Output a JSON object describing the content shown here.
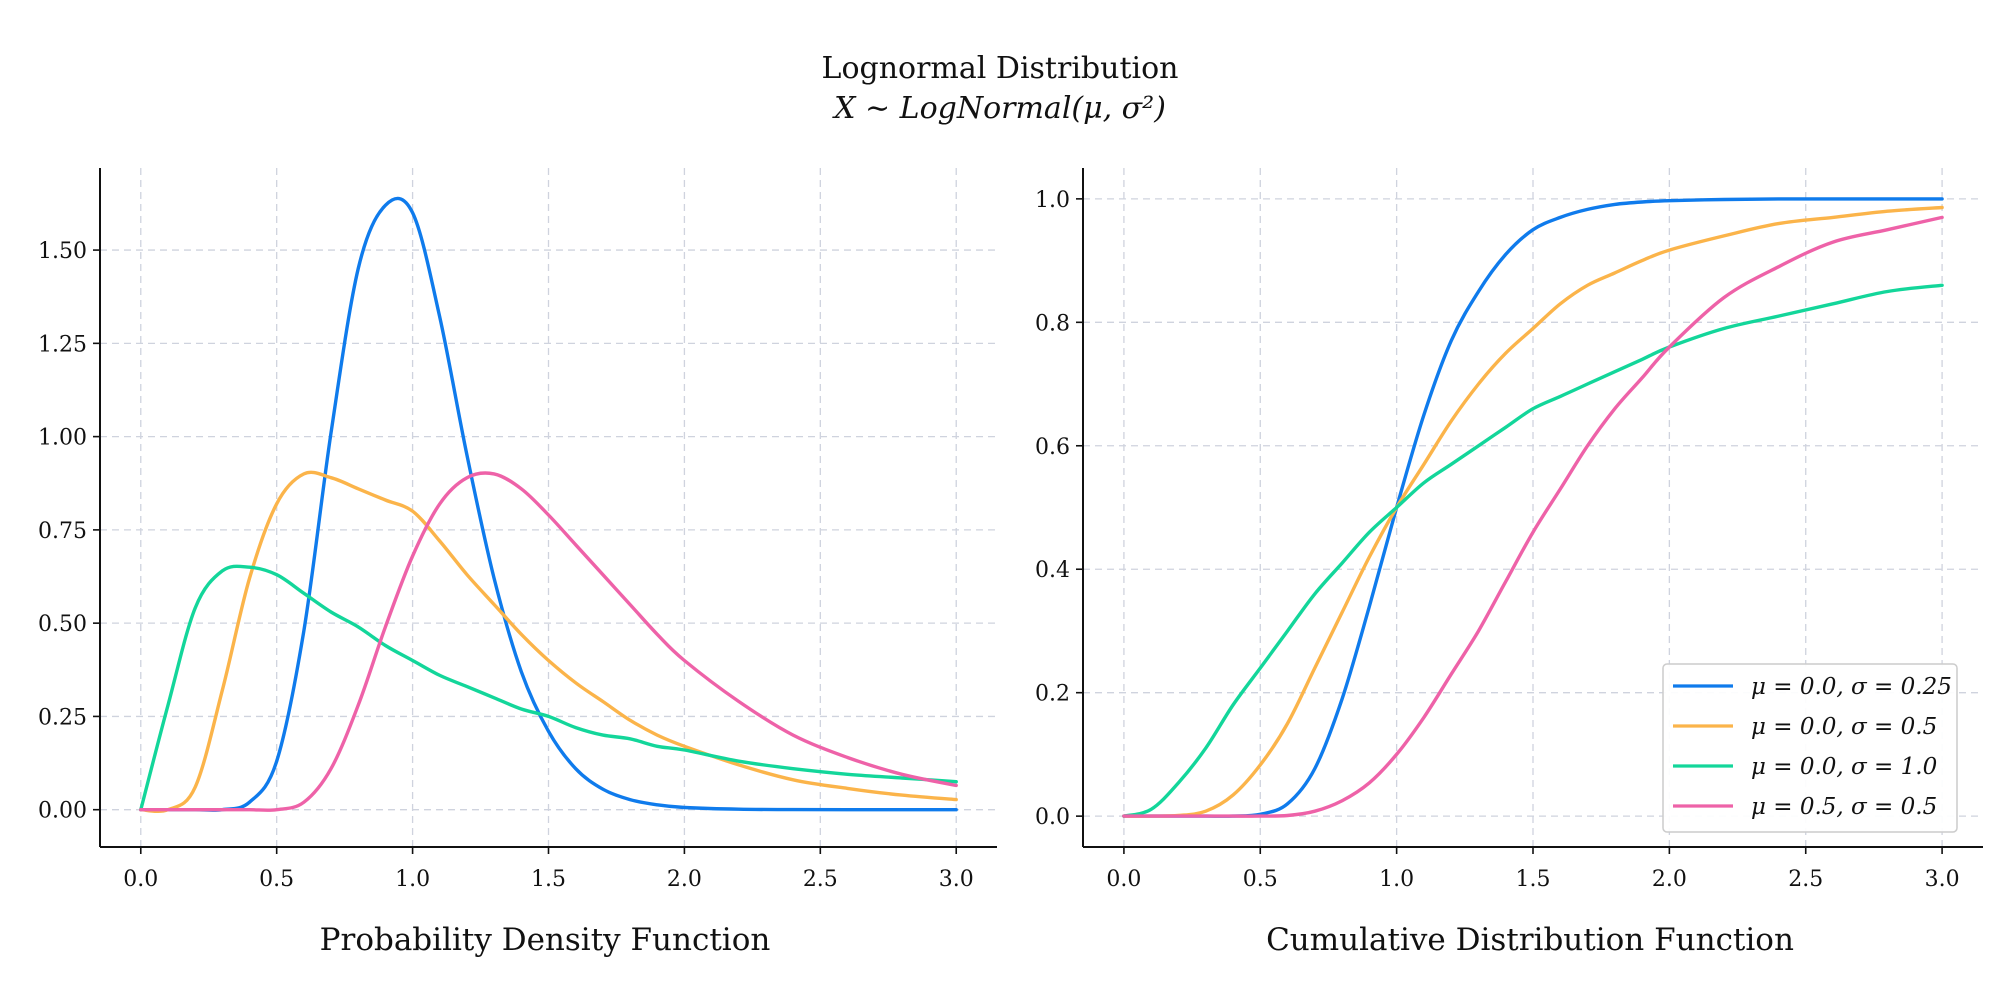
{
  "figure": {
    "title": "Lognormal Distribution",
    "subtitle": "X ∼ LogNormal(μ, σ²)"
  },
  "colors": {
    "grid": "#cfd3de",
    "axis": "#111111",
    "series": [
      "#0f7bec",
      "#fbb44a",
      "#13d69a",
      "#ee62a8"
    ]
  },
  "legend": {
    "placement": "lower-right",
    "entries": [
      "μ = 0.0, σ = 0.25",
      "μ = 0.0, σ = 0.5",
      "μ = 0.0, σ = 1.0",
      "μ = 0.5, σ = 0.5"
    ]
  },
  "chart_data": [
    {
      "type": "line",
      "xlabel": "Probability Density Function",
      "ylabel": "",
      "xlim": [
        -0.15,
        3.15
      ],
      "ylim": [
        -0.1,
        1.72
      ],
      "xticks": [
        0.0,
        0.5,
        1.0,
        1.5,
        2.0,
        2.5,
        3.0
      ],
      "xtick_labels": [
        "0.0",
        "0.5",
        "1.0",
        "1.5",
        "2.0",
        "2.5",
        "3.0"
      ],
      "yticks": [
        0.0,
        0.25,
        0.5,
        0.75,
        1.0,
        1.25,
        1.5
      ],
      "ytick_labels": [
        "0.00",
        "0.25",
        "0.50",
        "0.75",
        "1.00",
        "1.25",
        "1.50"
      ],
      "grid": true,
      "x": [
        0.0,
        0.1,
        0.2,
        0.3,
        0.4,
        0.5,
        0.6,
        0.7,
        0.8,
        0.9,
        1.0,
        1.1,
        1.2,
        1.3,
        1.4,
        1.5,
        1.6,
        1.7,
        1.8,
        1.9,
        2.0,
        2.2,
        2.4,
        2.6,
        2.8,
        3.0
      ],
      "series": [
        {
          "name": "μ = 0.0, σ = 0.25",
          "values": [
            0.0,
            0.0,
            0.0,
            0.0,
            0.02,
            0.13,
            0.48,
            1.01,
            1.45,
            1.62,
            1.6,
            1.32,
            0.95,
            0.62,
            0.37,
            0.21,
            0.11,
            0.055,
            0.027,
            0.013,
            0.006,
            0.0013,
            0.0003,
            0.0001,
            0.0,
            0.0
          ]
        },
        {
          "name": "μ = 0.0, σ = 0.5",
          "values": [
            0.0,
            0.0,
            0.06,
            0.32,
            0.62,
            0.82,
            0.9,
            0.89,
            0.86,
            0.83,
            0.8,
            0.72,
            0.63,
            0.55,
            0.47,
            0.4,
            0.34,
            0.29,
            0.24,
            0.2,
            0.17,
            0.12,
            0.08,
            0.057,
            0.039,
            0.027
          ]
        },
        {
          "name": "μ = 0.0, σ = 1.0",
          "values": [
            0.0,
            0.28,
            0.54,
            0.64,
            0.65,
            0.63,
            0.58,
            0.53,
            0.49,
            0.44,
            0.4,
            0.36,
            0.33,
            0.3,
            0.27,
            0.25,
            0.22,
            0.2,
            0.19,
            0.17,
            0.16,
            0.13,
            0.11,
            0.095,
            0.085,
            0.075
          ]
        },
        {
          "name": "μ = 0.5, σ = 0.5",
          "values": [
            0.0,
            0.0,
            0.0,
            0.0,
            0.0,
            0.0,
            0.02,
            0.11,
            0.28,
            0.49,
            0.68,
            0.82,
            0.89,
            0.9,
            0.86,
            0.79,
            0.71,
            0.63,
            0.55,
            0.47,
            0.4,
            0.29,
            0.2,
            0.14,
            0.095,
            0.065
          ]
        }
      ]
    },
    {
      "type": "line",
      "xlabel": "Cumulative Distribution Function",
      "ylabel": "",
      "xlim": [
        -0.15,
        3.15
      ],
      "ylim": [
        -0.05,
        1.05
      ],
      "xticks": [
        0.0,
        0.5,
        1.0,
        1.5,
        2.0,
        2.5,
        3.0
      ],
      "xtick_labels": [
        "0.0",
        "0.5",
        "1.0",
        "1.5",
        "2.0",
        "2.5",
        "3.0"
      ],
      "yticks": [
        0.0,
        0.2,
        0.4,
        0.6,
        0.8,
        1.0
      ],
      "ytick_labels": [
        "0.0",
        "0.2",
        "0.4",
        "0.6",
        "0.8",
        "1.0"
      ],
      "grid": true,
      "x": [
        0.0,
        0.1,
        0.2,
        0.3,
        0.4,
        0.5,
        0.6,
        0.7,
        0.8,
        0.9,
        1.0,
        1.1,
        1.2,
        1.3,
        1.4,
        1.5,
        1.6,
        1.7,
        1.8,
        1.9,
        2.0,
        2.2,
        2.4,
        2.6,
        2.8,
        3.0
      ],
      "series": [
        {
          "name": "μ = 0.0, σ = 0.25",
          "values": [
            0.0,
            0.0,
            0.0,
            0.0,
            0.0,
            0.003,
            0.02,
            0.077,
            0.19,
            0.34,
            0.5,
            0.65,
            0.77,
            0.85,
            0.91,
            0.95,
            0.97,
            0.983,
            0.991,
            0.995,
            0.997,
            0.999,
            1.0,
            1.0,
            1.0,
            1.0
          ]
        },
        {
          "name": "μ = 0.0, σ = 0.5",
          "values": [
            0.0,
            0.0,
            0.001,
            0.008,
            0.034,
            0.083,
            0.15,
            0.24,
            0.33,
            0.42,
            0.5,
            0.57,
            0.64,
            0.7,
            0.75,
            0.79,
            0.83,
            0.86,
            0.88,
            0.9,
            0.917,
            0.94,
            0.96,
            0.97,
            0.98,
            0.986
          ]
        },
        {
          "name": "μ = 0.0, σ = 1.0",
          "values": [
            0.0,
            0.011,
            0.054,
            0.11,
            0.18,
            0.24,
            0.3,
            0.36,
            0.41,
            0.46,
            0.5,
            0.54,
            0.57,
            0.6,
            0.63,
            0.66,
            0.68,
            0.7,
            0.72,
            0.74,
            0.76,
            0.79,
            0.81,
            0.83,
            0.85,
            0.86
          ]
        },
        {
          "name": "μ = 0.5, σ = 0.5",
          "values": [
            0.0,
            0.0,
            0.0,
            0.0,
            0.0,
            0.0,
            0.001,
            0.008,
            0.025,
            0.054,
            0.1,
            0.16,
            0.23,
            0.3,
            0.38,
            0.46,
            0.53,
            0.6,
            0.66,
            0.71,
            0.76,
            0.84,
            0.89,
            0.93,
            0.95,
            0.97
          ]
        }
      ]
    }
  ]
}
